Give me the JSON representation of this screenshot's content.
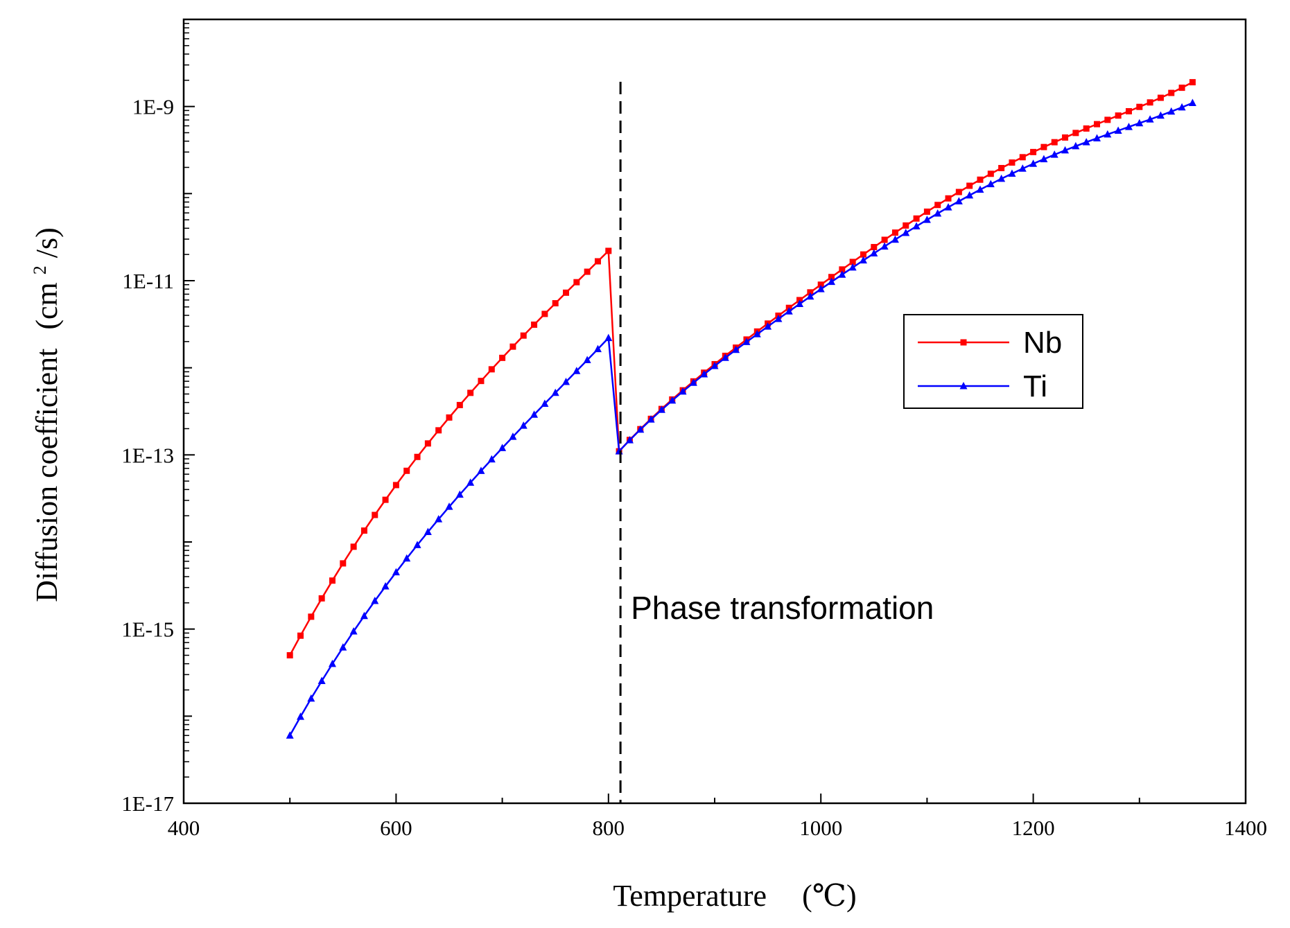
{
  "chart_data": {
    "type": "line",
    "title": "",
    "xlabel": "Temperature",
    "xlabel_unit": "(℃)",
    "ylabel": "Diffusion coefficient",
    "ylabel_unit_open": "(cm",
    "ylabel_unit_sup": "2",
    "ylabel_unit_close": "/s)",
    "x_scale": "linear",
    "y_scale": "log",
    "xlim": [
      400,
      1400
    ],
    "ylim": [
      1e-17,
      1e-08
    ],
    "x_ticks": [
      400,
      600,
      800,
      1000,
      1200,
      1400
    ],
    "x_tick_labels": [
      "400",
      "600",
      "800",
      "1000",
      "1200",
      "1400"
    ],
    "y_ticks": [
      1e-17,
      1e-15,
      1e-13,
      1e-11,
      1e-09
    ],
    "y_tick_labels": [
      "1E-17",
      "1E-15",
      "1E-13",
      "1E-11",
      "1E-9"
    ],
    "grid": false,
    "legend_position": "right-center",
    "annotation": {
      "text": "Phase transformation",
      "x": 810
    },
    "series": [
      {
        "name": "Nb",
        "color": "#ff0000",
        "marker": "square",
        "segments": [
          {
            "x": [
              500,
              600,
              700,
              800
            ],
            "y": [
              5e-16,
              4.5e-14,
              1.3e-12,
              2.2e-11
            ]
          },
          {
            "x": [
              810,
              900,
              1000,
              1100,
              1200,
              1350
            ],
            "y": [
              1.1e-13,
              1.1e-12,
              9e-12,
              6.2e-11,
              3e-10,
              1.9e-09
            ]
          }
        ]
      },
      {
        "name": "Ti",
        "color": "#0000ff",
        "marker": "triangle",
        "segments": [
          {
            "x": [
              500,
              600,
              700,
              800
            ],
            "y": [
              6e-17,
              4.5e-15,
              1.2e-13,
              2.2e-12
            ]
          },
          {
            "x": [
              810,
              900,
              1000,
              1100,
              1200,
              1350
            ],
            "y": [
              1.1e-13,
              1.05e-12,
              8e-12,
              5e-11,
              2.2e-10,
              1.1e-09
            ]
          }
        ]
      }
    ]
  }
}
